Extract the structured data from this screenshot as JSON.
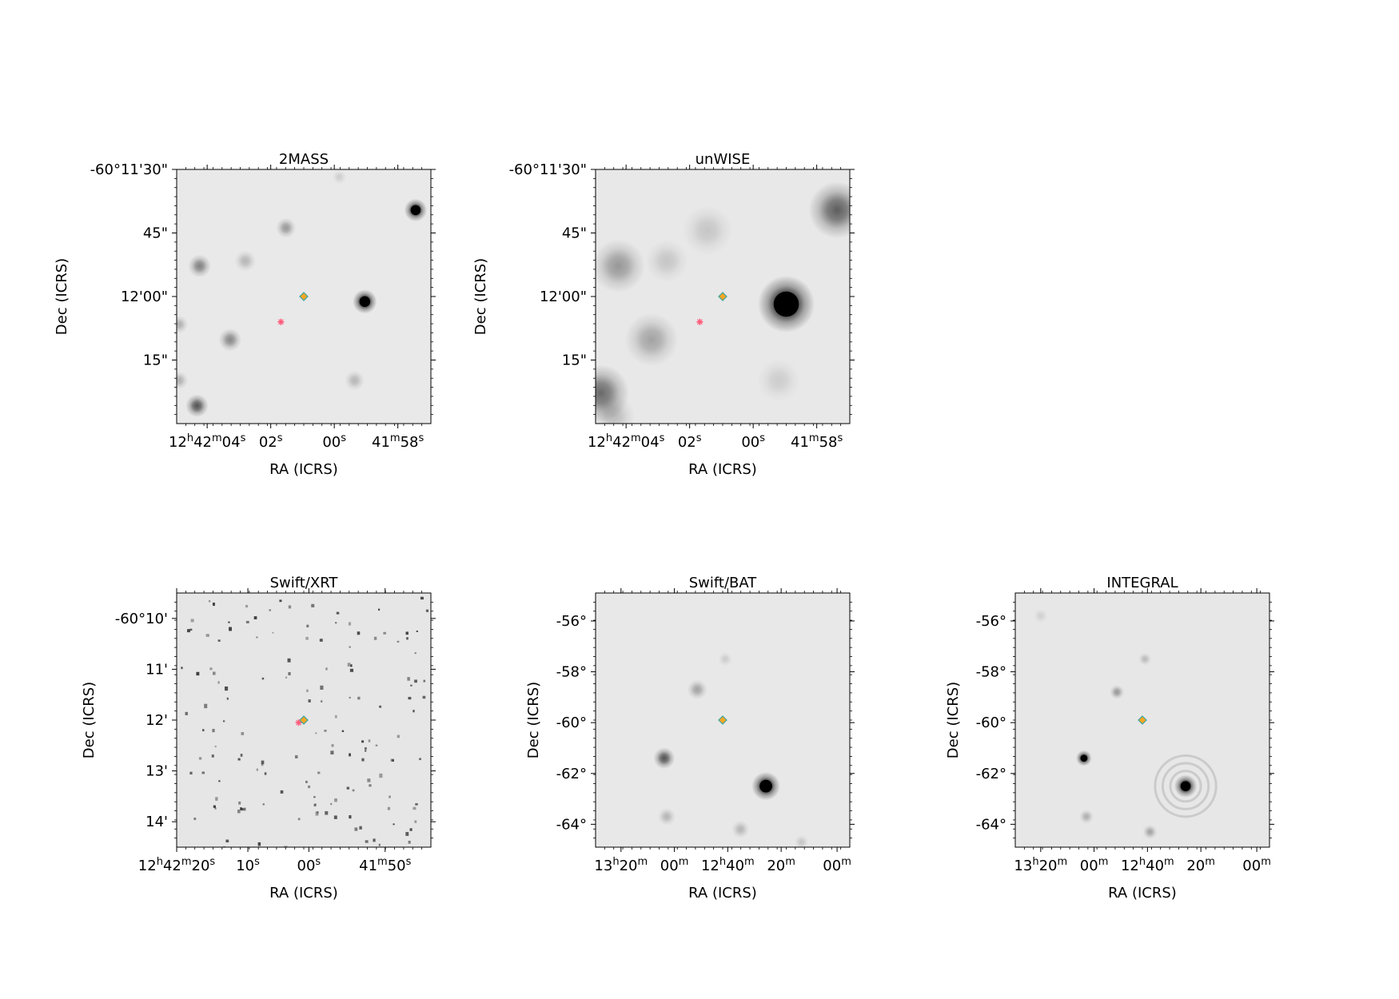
{
  "panels": [
    {
      "id": "2mass",
      "title": "2MASS",
      "xlabel": "RA (ICRS)",
      "ylabel": "Dec (ICRS)",
      "colors": {
        "background": "#e9e9e9"
      },
      "yticks": [
        {
          "label": "-60°11'30\"",
          "f": 0.0
        },
        {
          "label": "45\"",
          "f": 0.25
        },
        {
          "label": "12'00\"",
          "f": 0.5
        },
        {
          "label": "15\"",
          "f": 0.75
        }
      ],
      "xticks": [
        {
          "base": "12",
          "parts": [
            [
              "h",
              "42"
            ],
            [
              "m",
              "04"
            ],
            [
              "s",
              ""
            ]
          ],
          "f": 0.12
        },
        {
          "base": "02",
          "parts": [
            [
              "s",
              ""
            ]
          ],
          "f": 0.37
        },
        {
          "base": "00",
          "parts": [
            [
              "s",
              ""
            ]
          ],
          "f": 0.62
        },
        {
          "base": "41",
          "parts": [
            [
              "m",
              "58"
            ],
            [
              "s",
              ""
            ]
          ],
          "f": 0.87
        }
      ],
      "sources": [
        {
          "x": 0.94,
          "y": 0.16,
          "r": 0.032,
          "s": 0.95
        },
        {
          "x": 0.74,
          "y": 0.52,
          "r": 0.034,
          "s": 1.0
        },
        {
          "x": 0.43,
          "y": 0.23,
          "r": 0.028,
          "s": 0.35
        },
        {
          "x": 0.09,
          "y": 0.38,
          "r": 0.032,
          "s": 0.45
        },
        {
          "x": 0.27,
          "y": 0.36,
          "r": 0.03,
          "s": 0.22
        },
        {
          "x": 0.21,
          "y": 0.67,
          "r": 0.032,
          "s": 0.42
        },
        {
          "x": 0.08,
          "y": 0.93,
          "r": 0.032,
          "s": 0.65
        },
        {
          "x": 0.7,
          "y": 0.83,
          "r": 0.028,
          "s": 0.22
        },
        {
          "x": 0.01,
          "y": 0.61,
          "r": 0.025,
          "s": 0.25
        },
        {
          "x": 0.01,
          "y": 0.83,
          "r": 0.025,
          "s": 0.25
        },
        {
          "x": 0.64,
          "y": 0.03,
          "r": 0.02,
          "s": 0.12
        }
      ],
      "markers": {
        "diamond": {
          "x": 0.5,
          "y": 0.5
        },
        "cross": {
          "x": 0.41,
          "y": 0.6
        }
      }
    },
    {
      "id": "unwise",
      "title": "unWISE",
      "xlabel": "RA (ICRS)",
      "ylabel": "Dec (ICRS)",
      "colors": {
        "background": "#e8e8e8"
      },
      "yticks": [
        {
          "label": "-60°11'30\"",
          "f": 0.0
        },
        {
          "label": "45\"",
          "f": 0.25
        },
        {
          "label": "12'00\"",
          "f": 0.5
        },
        {
          "label": "15\"",
          "f": 0.75
        }
      ],
      "xticks": [
        {
          "base": "12",
          "parts": [
            [
              "h",
              "42"
            ],
            [
              "m",
              "04"
            ],
            [
              "s",
              ""
            ]
          ],
          "f": 0.12
        },
        {
          "base": "02",
          "parts": [
            [
              "s",
              ""
            ]
          ],
          "f": 0.37
        },
        {
          "base": "00",
          "parts": [
            [
              "s",
              ""
            ]
          ],
          "f": 0.62
        },
        {
          "base": "41",
          "parts": [
            [
              "m",
              "58"
            ],
            [
              "s",
              ""
            ]
          ],
          "f": 0.87
        }
      ],
      "sources": [
        {
          "x": 0.75,
          "y": 0.53,
          "r": 0.08,
          "s": 1.0
        },
        {
          "x": 0.95,
          "y": 0.16,
          "r": 0.08,
          "s": 0.6
        },
        {
          "x": 0.09,
          "y": 0.38,
          "r": 0.075,
          "s": 0.35
        },
        {
          "x": 0.22,
          "y": 0.67,
          "r": 0.075,
          "s": 0.3
        },
        {
          "x": 0.02,
          "y": 0.88,
          "r": 0.08,
          "s": 0.55
        },
        {
          "x": 0.44,
          "y": 0.24,
          "r": 0.07,
          "s": 0.15
        },
        {
          "x": 0.28,
          "y": 0.36,
          "r": 0.06,
          "s": 0.15
        },
        {
          "x": 0.72,
          "y": 0.83,
          "r": 0.06,
          "s": 0.12
        },
        {
          "x": 0.07,
          "y": 0.97,
          "r": 0.06,
          "s": 0.2
        }
      ],
      "markers": {
        "diamond": {
          "x": 0.5,
          "y": 0.5
        },
        "cross": {
          "x": 0.41,
          "y": 0.6
        }
      }
    },
    {
      "id": "xrt",
      "title": "Swift/XRT",
      "xlabel": "RA (ICRS)",
      "ylabel": "Dec (ICRS)",
      "colors": {
        "background": "#e6e6e6"
      },
      "yticks": [
        {
          "label": "-60°10'",
          "f": 0.1
        },
        {
          "label": "11'",
          "f": 0.3
        },
        {
          "label": "12'",
          "f": 0.5
        },
        {
          "label": "13'",
          "f": 0.7
        },
        {
          "label": "14'",
          "f": 0.9
        }
      ],
      "xticks": [
        {
          "base": "12",
          "parts": [
            [
              "h",
              "42"
            ],
            [
              "m",
              "20"
            ],
            [
              "s",
              ""
            ]
          ],
          "f": 0.0
        },
        {
          "base": "10",
          "parts": [
            [
              "s",
              ""
            ]
          ],
          "f": 0.28
        },
        {
          "base": "00",
          "parts": [
            [
              "s",
              ""
            ]
          ],
          "f": 0.52
        },
        {
          "base": "41",
          "parts": [
            [
              "m",
              "50"
            ],
            [
              "s",
              ""
            ]
          ],
          "f": 0.82
        }
      ],
      "speckle_seed": 17,
      "speckle_count": 150,
      "markers": {
        "diamond": {
          "x": 0.5,
          "y": 0.5
        },
        "cross": {
          "x": 0.48,
          "y": 0.51
        }
      }
    },
    {
      "id": "bat",
      "title": "Swift/BAT",
      "xlabel": "RA (ICRS)",
      "ylabel": "Dec (ICRS)",
      "colors": {
        "background": "#e8e8e8"
      },
      "yticks": [
        {
          "label": "-56°",
          "f": 0.11
        },
        {
          "label": "-58°",
          "f": 0.31
        },
        {
          "label": "-60°",
          "f": 0.51
        },
        {
          "label": "-62°",
          "f": 0.71
        },
        {
          "label": "-64°",
          "f": 0.91
        }
      ],
      "xticks": [
        {
          "base": "13",
          "parts": [
            [
              "h",
              "20"
            ],
            [
              "m",
              ""
            ]
          ],
          "f": 0.1
        },
        {
          "base": "00",
          "parts": [
            [
              "m",
              ""
            ]
          ],
          "f": 0.31
        },
        {
          "base": "12",
          "parts": [
            [
              "h",
              "40"
            ],
            [
              "m",
              ""
            ]
          ],
          "f": 0.52
        },
        {
          "base": "20",
          "parts": [
            [
              "m",
              ""
            ]
          ],
          "f": 0.73
        },
        {
          "base": "00",
          "parts": [
            [
              "m",
              ""
            ]
          ],
          "f": 0.95
        }
      ],
      "sources": [
        {
          "x": 0.67,
          "y": 0.76,
          "r": 0.04,
          "s": 1.0
        },
        {
          "x": 0.27,
          "y": 0.65,
          "r": 0.03,
          "s": 0.65
        },
        {
          "x": 0.4,
          "y": 0.38,
          "r": 0.028,
          "s": 0.3
        },
        {
          "x": 0.28,
          "y": 0.88,
          "r": 0.025,
          "s": 0.22
        },
        {
          "x": 0.57,
          "y": 0.93,
          "r": 0.025,
          "s": 0.22
        },
        {
          "x": 0.51,
          "y": 0.26,
          "r": 0.02,
          "s": 0.12
        },
        {
          "x": 0.81,
          "y": 0.98,
          "r": 0.02,
          "s": 0.15
        }
      ],
      "markers": {
        "diamond": {
          "x": 0.5,
          "y": 0.5
        }
      }
    },
    {
      "id": "integral",
      "title": "INTEGRAL",
      "xlabel": "RA (ICRS)",
      "ylabel": "Dec (ICRS)",
      "colors": {
        "background": "#e7e7e7"
      },
      "yticks": [
        {
          "label": "-56°",
          "f": 0.11
        },
        {
          "label": "-58°",
          "f": 0.31
        },
        {
          "label": "-60°",
          "f": 0.51
        },
        {
          "label": "-62°",
          "f": 0.71
        },
        {
          "label": "-64°",
          "f": 0.91
        }
      ],
      "xticks": [
        {
          "base": "13",
          "parts": [
            [
              "h",
              "20"
            ],
            [
              "m",
              ""
            ]
          ],
          "f": 0.1
        },
        {
          "base": "00",
          "parts": [
            [
              "m",
              ""
            ]
          ],
          "f": 0.31
        },
        {
          "base": "12",
          "parts": [
            [
              "h",
              "40"
            ],
            [
              "m",
              ""
            ]
          ],
          "f": 0.52
        },
        {
          "base": "20",
          "parts": [
            [
              "m",
              ""
            ]
          ],
          "f": 0.73
        },
        {
          "base": "00",
          "parts": [
            [
              "m",
              ""
            ]
          ],
          "f": 0.95
        }
      ],
      "sources": [
        {
          "x": 0.67,
          "y": 0.76,
          "r": 0.032,
          "s": 1.0
        },
        {
          "x": 0.27,
          "y": 0.65,
          "r": 0.022,
          "s": 0.95
        },
        {
          "x": 0.4,
          "y": 0.39,
          "r": 0.02,
          "s": 0.35
        },
        {
          "x": 0.51,
          "y": 0.26,
          "r": 0.018,
          "s": 0.2
        },
        {
          "x": 0.28,
          "y": 0.88,
          "r": 0.02,
          "s": 0.25
        },
        {
          "x": 0.53,
          "y": 0.94,
          "r": 0.02,
          "s": 0.3
        },
        {
          "x": 0.1,
          "y": 0.09,
          "r": 0.02,
          "s": 0.1
        }
      ],
      "rings": {
        "x": 0.67,
        "y": 0.76,
        "radii": [
          0.06,
          0.09,
          0.12
        ],
        "s": 0.12
      },
      "markers": {
        "diamond": {
          "x": 0.5,
          "y": 0.5
        }
      }
    }
  ]
}
